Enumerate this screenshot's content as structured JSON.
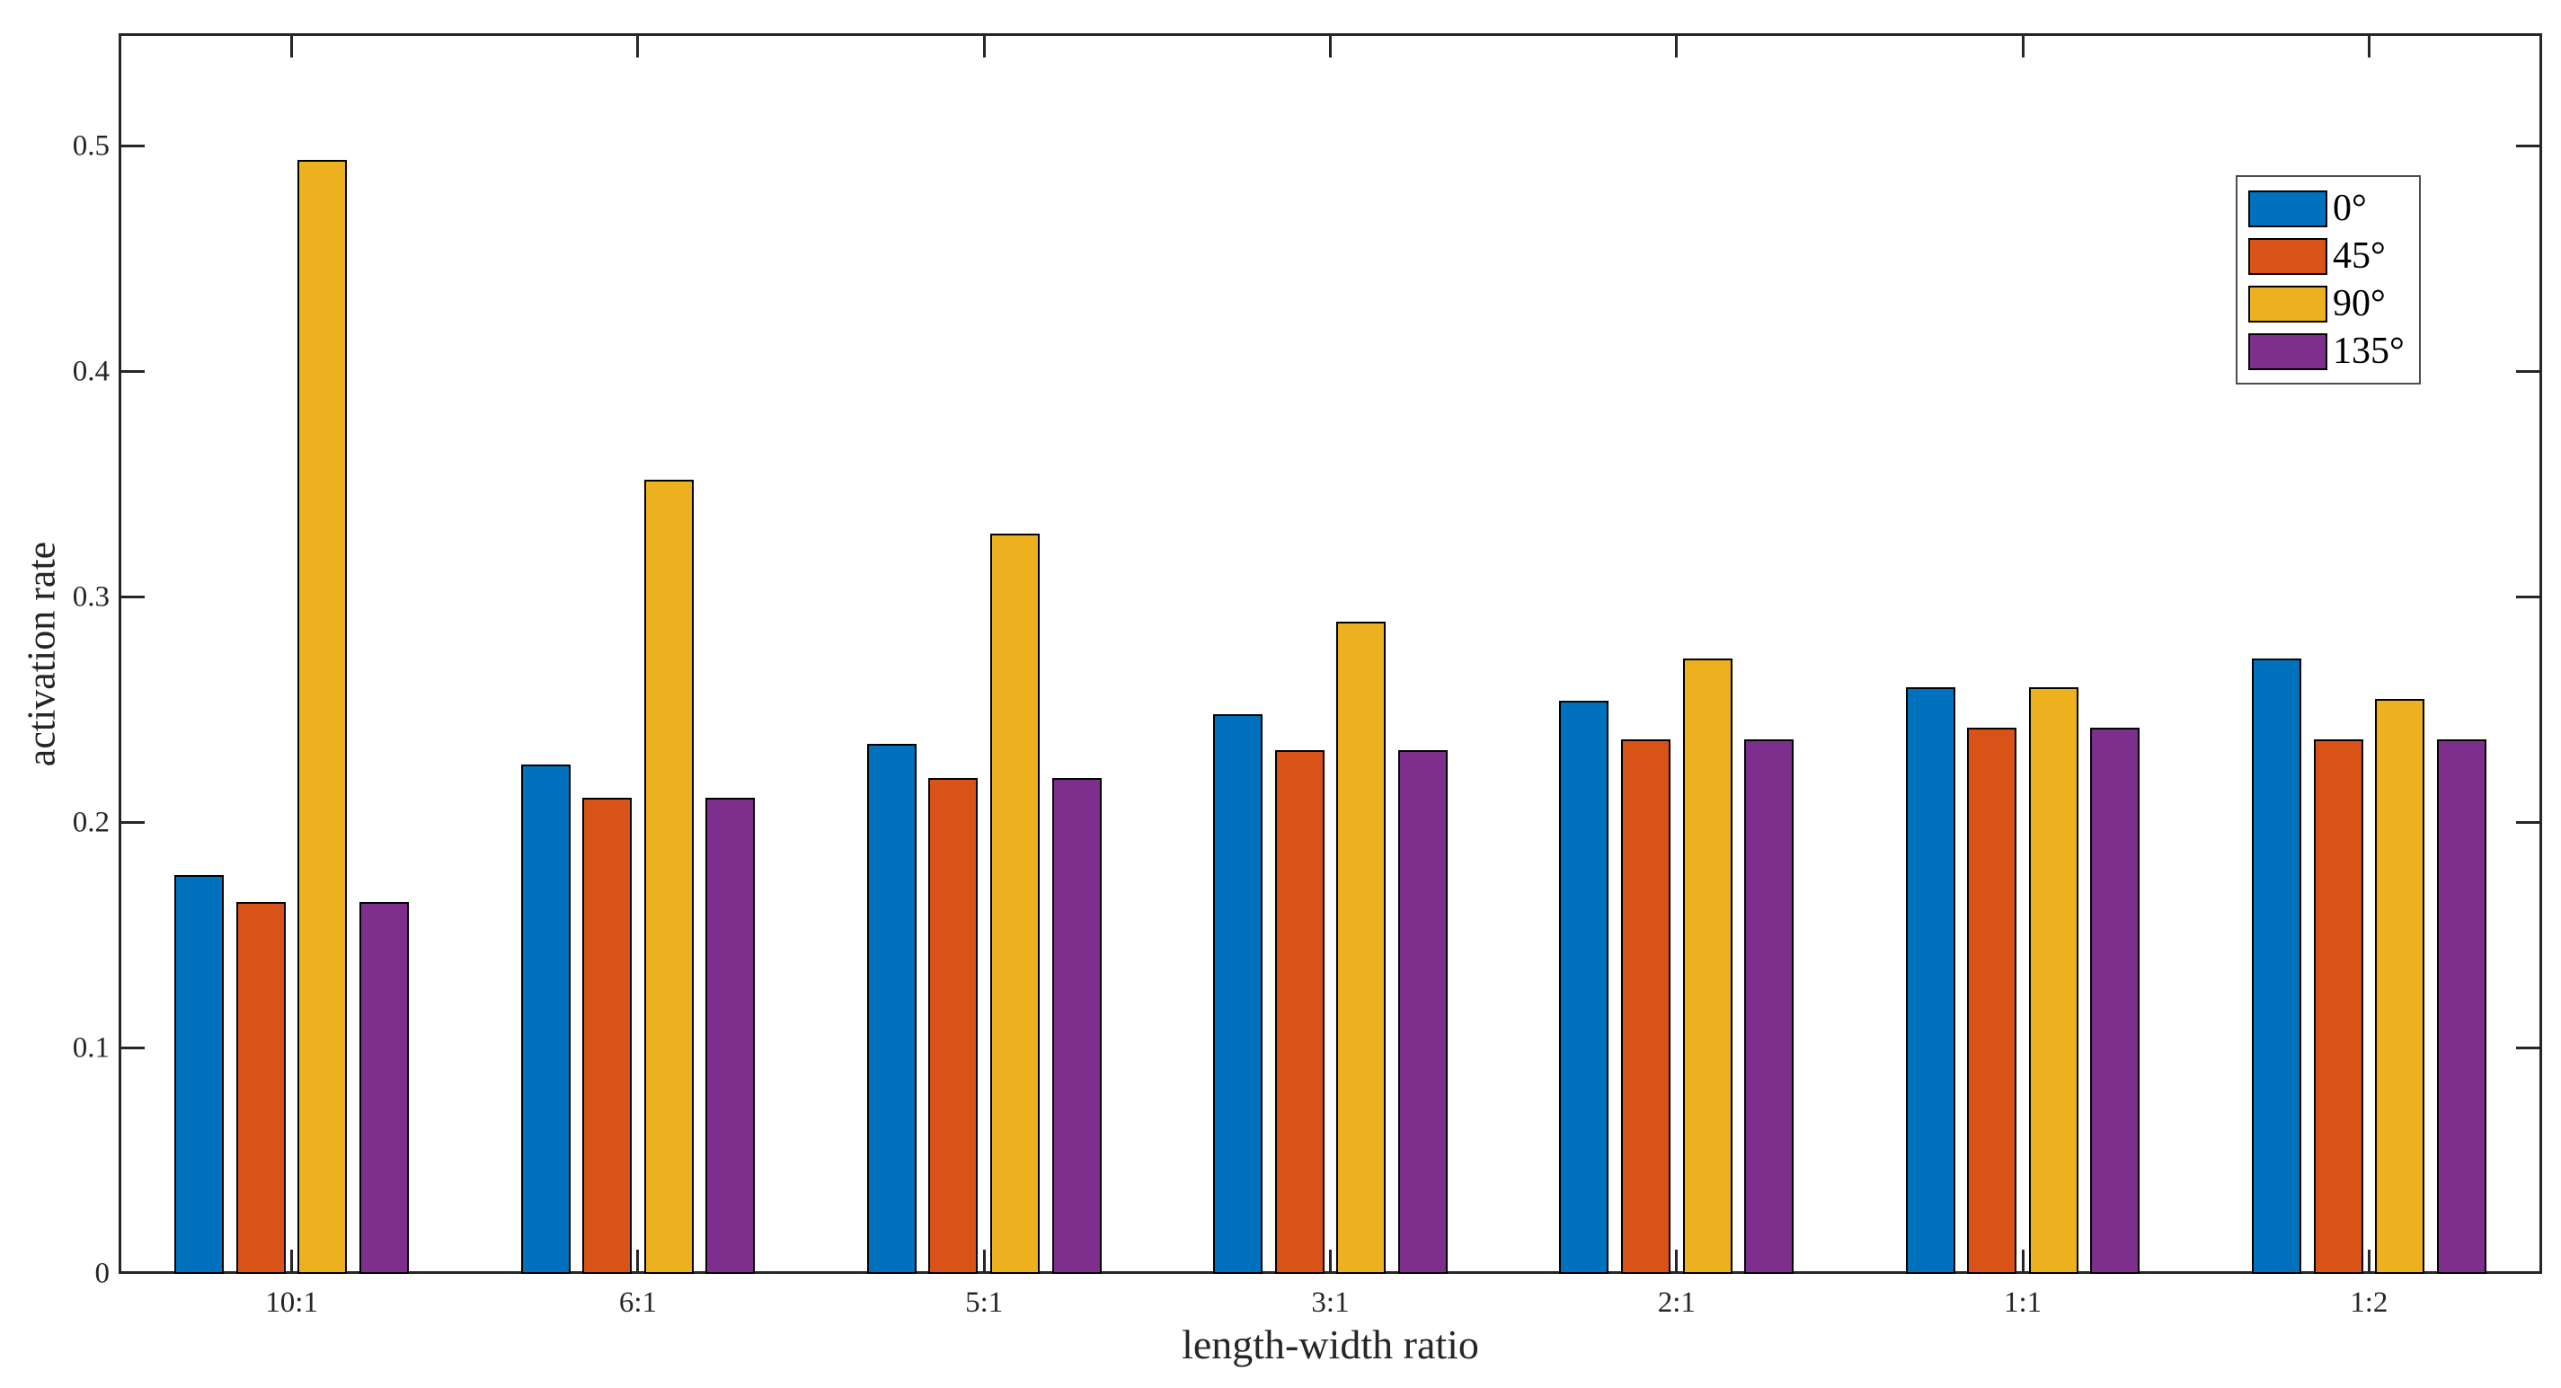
{
  "chart_data": {
    "type": "bar",
    "title": "",
    "xlabel": "length-width ratio",
    "ylabel": "activation rate",
    "categories": [
      "10:1",
      "6:1",
      "5:1",
      "3:1",
      "2:1",
      "1:1",
      "1:2"
    ],
    "series": [
      {
        "name": "0°",
        "color": "#0072BD",
        "values": [
          0.177,
          0.226,
          0.235,
          0.248,
          0.254,
          0.26,
          0.273
        ]
      },
      {
        "name": "45°",
        "color": "#D95319",
        "values": [
          0.165,
          0.211,
          0.22,
          0.232,
          0.237,
          0.242,
          0.237
        ]
      },
      {
        "name": "90°",
        "color": "#EDB120",
        "values": [
          0.494,
          0.352,
          0.328,
          0.289,
          0.273,
          0.26,
          0.255
        ]
      },
      {
        "name": "135°",
        "color": "#7E2F8E",
        "values": [
          0.165,
          0.211,
          0.22,
          0.232,
          0.237,
          0.242,
          0.237
        ]
      }
    ],
    "ylim": [
      0,
      0.55
    ],
    "yticks": [
      0,
      0.1,
      0.2,
      0.3,
      0.4,
      0.5
    ],
    "ytick_labels": [
      "0",
      "0.1",
      "0.2",
      "0.3",
      "0.4",
      "0.5"
    ],
    "grid": false,
    "legend_position": "top-right",
    "bar_edge_color": "#000000",
    "axis_color": "#262626",
    "background_color": "#ffffff"
  }
}
